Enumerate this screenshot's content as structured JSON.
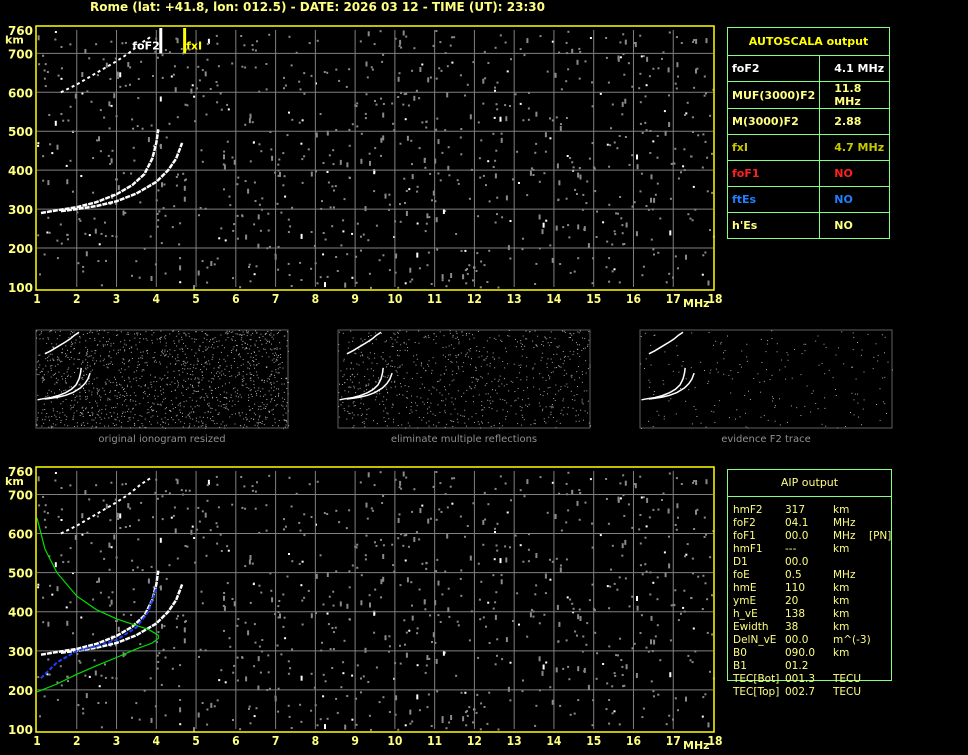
{
  "title": "Rome (lat: +41.8, lon: 012.5) - DATE: 2026 03 12 - TIME (UT): 23:30",
  "axes": {
    "x_ticks": [
      "1",
      "2",
      "3",
      "4",
      "5",
      "6",
      "7",
      "8",
      "9",
      "10",
      "11",
      "12",
      "13",
      "14",
      "15",
      "16",
      "17",
      "18"
    ],
    "x_unit": "MHz",
    "y_ticks": [
      "100",
      "200",
      "300",
      "400",
      "500",
      "600",
      "700",
      "760"
    ],
    "y_unit": "km",
    "xlim": [
      1,
      18
    ],
    "ylim": [
      100,
      760
    ]
  },
  "markers": {
    "foF2_label": "foF2",
    "foF2_freq": 4.1,
    "fxI_label": "fxI",
    "fxI_freq": 4.7
  },
  "autoscala": {
    "header": "AUTOSCALA output",
    "rows": [
      {
        "label": "foF2",
        "value": "4.1 MHz",
        "color": "#ffffff"
      },
      {
        "label": "MUF(3000)F2",
        "value": "11.8 MHz",
        "color": "#ffff80"
      },
      {
        "label": "M(3000)F2",
        "value": "2.88",
        "color": "#ffff80"
      },
      {
        "label": "fxI",
        "value": "4.7 MHz",
        "color": "#c8c800"
      },
      {
        "label": "foF1",
        "value": "NO",
        "color": "#ff2020"
      },
      {
        "label": "ftEs",
        "value": "NO",
        "color": "#2080ff"
      },
      {
        "label": "h'Es",
        "value": "NO",
        "color": "#ffff80"
      }
    ]
  },
  "thumbnails": [
    {
      "caption": "original ionogram resized"
    },
    {
      "caption": "eliminate multiple reflections"
    },
    {
      "caption": "evidence F2 trace"
    }
  ],
  "aip": {
    "header": "AIP output",
    "rows": [
      [
        "hmF2",
        "317",
        "km",
        ""
      ],
      [
        "foF2",
        "04.1",
        "MHz",
        ""
      ],
      [
        "foF1",
        "00.0",
        "MHz",
        "[PN]"
      ],
      [
        "hmF1",
        "---",
        "km",
        ""
      ],
      [
        "D1",
        "00.0",
        "",
        ""
      ],
      [
        "foE",
        "0.5",
        "MHz",
        ""
      ],
      [
        "hmE",
        "110",
        "km",
        ""
      ],
      [
        "ymE",
        "20",
        "km",
        ""
      ],
      [
        "h_vE",
        "138",
        "km",
        ""
      ],
      [
        "Ewidth",
        "38",
        "km",
        ""
      ],
      [
        "DelN_vE",
        "00.0",
        "m^(-3)",
        ""
      ],
      [
        "B0",
        "090.0",
        "km",
        ""
      ],
      [
        "B1",
        "01.2",
        "",
        ""
      ],
      [
        "TEC[Bot]",
        "001.3",
        "TECU",
        ""
      ],
      [
        "TEC[Top]",
        "002.7",
        "TECU",
        ""
      ]
    ]
  },
  "traces": {
    "o_trace": [
      [
        1.1,
        290
      ],
      [
        1.5,
        297
      ],
      [
        2,
        305
      ],
      [
        2.5,
        318
      ],
      [
        3,
        338
      ],
      [
        3.4,
        362
      ],
      [
        3.7,
        390
      ],
      [
        3.9,
        430
      ],
      [
        4.0,
        470
      ],
      [
        4.05,
        505
      ]
    ],
    "x_trace": [
      [
        1.6,
        295
      ],
      [
        2,
        300
      ],
      [
        2.5,
        308
      ],
      [
        3,
        320
      ],
      [
        3.5,
        340
      ],
      [
        4,
        370
      ],
      [
        4.3,
        400
      ],
      [
        4.5,
        430
      ],
      [
        4.65,
        470
      ]
    ],
    "second_hop": [
      [
        1.6,
        600
      ],
      [
        2,
        620
      ],
      [
        2.5,
        650
      ],
      [
        3,
        680
      ],
      [
        3.3,
        700
      ],
      [
        3.6,
        725
      ],
      [
        3.9,
        745
      ]
    ],
    "profile_green": [
      [
        1,
        195
      ],
      [
        1.5,
        215
      ],
      [
        2,
        240
      ],
      [
        2.5,
        262
      ],
      [
        3,
        283
      ],
      [
        3.5,
        305
      ],
      [
        3.9,
        320
      ],
      [
        4.05,
        332
      ],
      [
        4.05,
        340
      ],
      [
        3.8,
        355
      ],
      [
        3.4,
        368
      ],
      [
        3,
        382
      ],
      [
        2.5,
        405
      ],
      [
        2,
        440
      ],
      [
        1.5,
        500
      ],
      [
        1.2,
        560
      ],
      [
        1,
        640
      ]
    ],
    "profile_blue": [
      [
        1.1,
        230
      ],
      [
        1.5,
        270
      ],
      [
        2,
        300
      ],
      [
        2.5,
        312
      ],
      [
        3,
        328
      ],
      [
        3.5,
        360
      ],
      [
        3.8,
        400
      ],
      [
        4.0,
        460
      ]
    ],
    "colors": {
      "trace": "#ffffff",
      "profile": "#00e000",
      "fit": "#2040ff",
      "axis": "#ffff00",
      "grid": "#808080"
    }
  }
}
